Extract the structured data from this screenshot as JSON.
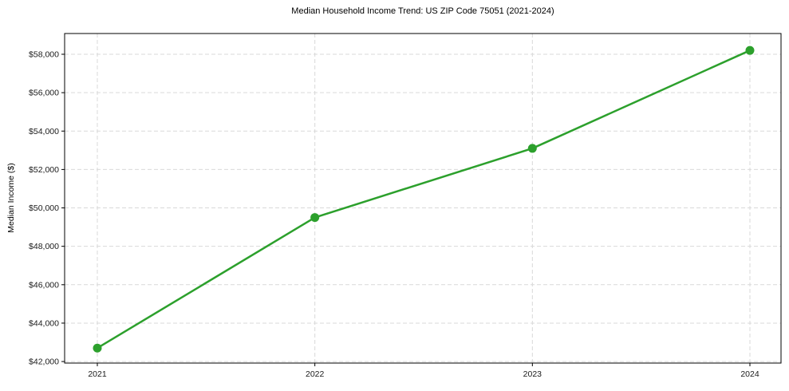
{
  "chart_data": {
    "type": "line",
    "title": "Median Household Income Trend: US ZIP Code 75051 (2021-2024)",
    "xlabel": "",
    "ylabel": "Median Income ($)",
    "categories": [
      "2021",
      "2022",
      "2023",
      "2024"
    ],
    "series": [
      {
        "name": "Median Household Income",
        "values": [
          42700,
          49500,
          53100,
          58200
        ],
        "color": "#2ca02c",
        "marker": "circle"
      }
    ],
    "ylim": [
      41920,
      59080
    ],
    "yticks": [
      42000,
      44000,
      46000,
      48000,
      50000,
      52000,
      54000,
      56000,
      58000
    ],
    "ytick_labels": [
      "$42,000",
      "$44,000",
      "$46,000",
      "$48,000",
      "$50,000",
      "$52,000",
      "$54,000",
      "$56,000",
      "$58,000"
    ],
    "xtick_labels": [
      "2021",
      "2022",
      "2023",
      "2024"
    ],
    "grid": true,
    "grid_style": "dashed",
    "grid_color": "#d9d9d9",
    "axis_color": "#000000",
    "tick_label_color": "#1a1a1a",
    "background_color": "#ffffff",
    "legend": "none"
  }
}
